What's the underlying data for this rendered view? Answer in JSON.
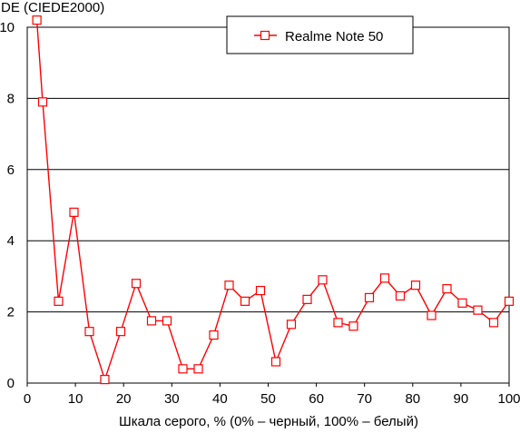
{
  "chart_data": {
    "type": "line",
    "title": "",
    "ylabel": "DE (CIEDE2000)",
    "xlabel": "Шкала серого, % (0% – черный, 100% – белый)",
    "xlim": [
      0,
      100
    ],
    "ylim": [
      0,
      10
    ],
    "x_ticks": [
      0,
      10,
      20,
      30,
      40,
      50,
      60,
      70,
      80,
      90,
      100
    ],
    "y_ticks": [
      0,
      2,
      4,
      6,
      8,
      10
    ],
    "grid": "horizontal",
    "legend_position": "top-right",
    "series": [
      {
        "name": "Realme Note 50",
        "color": "#ff0000",
        "marker": "open-square",
        "x": [
          2,
          3.2,
          6.5,
          9.7,
          12.9,
          16.1,
          19.4,
          22.6,
          25.8,
          29,
          32.3,
          35.5,
          38.7,
          41.9,
          45.2,
          48.4,
          51.6,
          54.8,
          58.1,
          61.3,
          64.5,
          67.7,
          71,
          74.2,
          77.4,
          80.6,
          83.9,
          87.1,
          90.3,
          93.5,
          96.8,
          100
        ],
        "y": [
          10.2,
          7.9,
          2.3,
          4.8,
          1.45,
          0.1,
          1.45,
          2.8,
          1.75,
          1.75,
          0.4,
          0.4,
          1.35,
          2.75,
          2.3,
          2.6,
          0.6,
          1.65,
          2.35,
          2.9,
          1.7,
          1.6,
          2.4,
          2.95,
          2.45,
          2.75,
          1.9,
          2.65,
          2.25,
          2.05,
          1.7,
          2.3
        ]
      }
    ]
  }
}
